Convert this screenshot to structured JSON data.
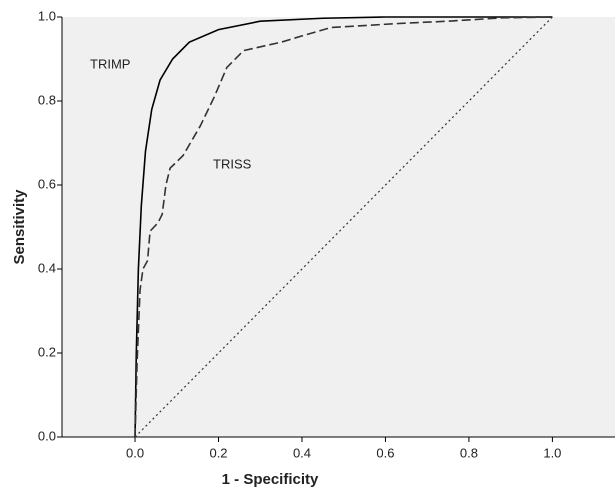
{
  "chart_data": {
    "type": "line",
    "x_label": "1 - Specificity",
    "y_label": "Sensitivity",
    "xlim": [
      -0.175,
      1.15
    ],
    "ylim": [
      0,
      1
    ],
    "xticks": [
      {
        "value": 0,
        "label": "0.0"
      },
      {
        "value": 0.2,
        "label": "0.2"
      },
      {
        "value": 0.4,
        "label": "0.4"
      },
      {
        "value": 0.6,
        "label": "0.6"
      },
      {
        "value": 0.8,
        "label": "0.8"
      },
      {
        "value": 1,
        "label": "1.0"
      }
    ],
    "yticks": [
      {
        "value": 0,
        "label": "0.0"
      },
      {
        "value": 0.2,
        "label": "0.2"
      },
      {
        "value": 0.4,
        "label": "0.4"
      },
      {
        "value": 0.6,
        "label": "0.6"
      },
      {
        "value": 0.8,
        "label": "0.8"
      },
      {
        "value": 1,
        "label": "1.0"
      }
    ],
    "series": [
      {
        "name": "TRIMP",
        "color": "#000000",
        "dash": "solid",
        "x": [
          0,
          0.003,
          0.008,
          0.015,
          0.025,
          0.04,
          0.06,
          0.09,
          0.13,
          0.2,
          0.3,
          0.45,
          0.6,
          1
        ],
        "values": [
          0,
          0.2,
          0.4,
          0.55,
          0.68,
          0.78,
          0.85,
          0.9,
          0.94,
          0.97,
          0.99,
          0.997,
          1,
          1
        ]
      },
      {
        "name": "TRISS",
        "color": "#333333",
        "dash": "dashed",
        "x": [
          0,
          0.005,
          0.012,
          0.019,
          0.03,
          0.036,
          0.055,
          0.065,
          0.074,
          0.084,
          0.115,
          0.156,
          0.19,
          0.22,
          0.26,
          0.35,
          0.4,
          0.47,
          0.64,
          0.75,
          0.88,
          1
        ],
        "values": [
          0,
          0.18,
          0.35,
          0.4,
          0.42,
          0.49,
          0.51,
          0.53,
          0.6,
          0.64,
          0.67,
          0.74,
          0.81,
          0.88,
          0.92,
          0.94,
          0.955,
          0.975,
          0.985,
          0.99,
          0.998,
          1
        ]
      },
      {
        "color": "#333333",
        "dash": "dotted",
        "x": [
          0,
          1
        ],
        "values": [
          0,
          1
        ]
      }
    ]
  }
}
